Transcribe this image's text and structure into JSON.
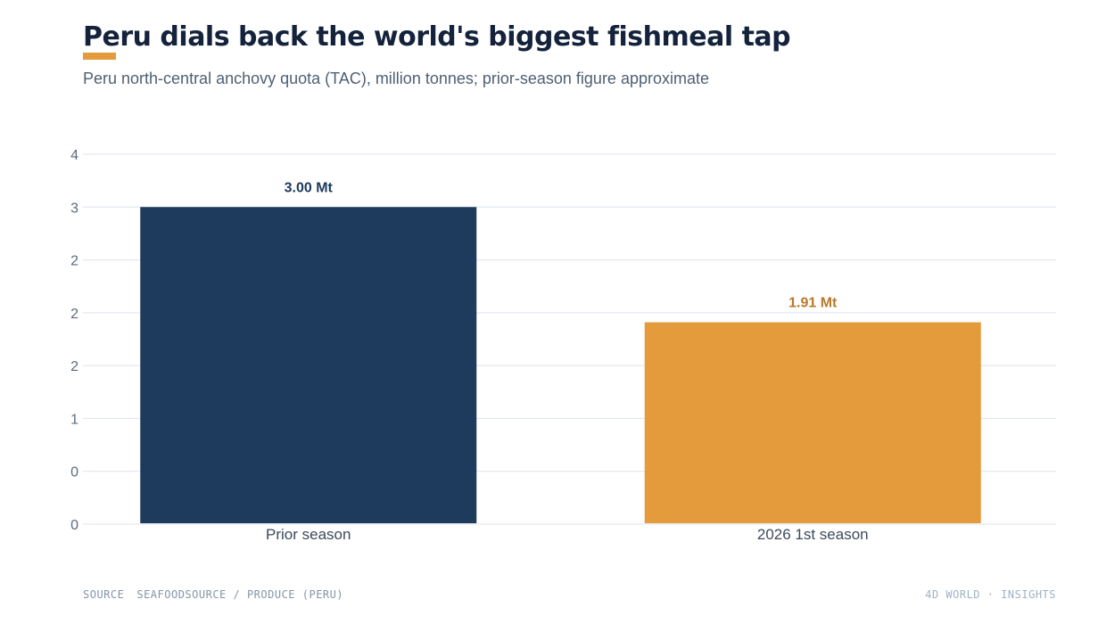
{
  "header": {
    "title": "Peru dials back the world's biggest fishmeal tap",
    "subtitle": "Peru north-central anchovy quota (TAC), million tonnes; prior-season figure approximate"
  },
  "colors": {
    "accent": "#e39b3b",
    "primary_bar": "#1e3a5c",
    "secondary_bar": "#e39b3b",
    "title": "#14233b",
    "grid": "#dde3ec"
  },
  "chart_data": {
    "type": "bar",
    "title": "Peru dials back the world's biggest fishmeal tap",
    "subtitle": "Peru north-central anchovy quota (TAC), million tonnes; prior-season figure approximate",
    "categories": [
      "Prior season",
      "2026 1st season"
    ],
    "values": [
      3.0,
      1.91
    ],
    "data_labels": [
      "3.00 Mt",
      "1.91 Mt"
    ],
    "bar_colors": [
      "#1e3a5c",
      "#e39b3b"
    ],
    "label_colors": [
      "#1e3a5c",
      "#b8792a"
    ],
    "ylim": [
      0,
      3.5
    ],
    "yticks": [
      0,
      0.5,
      1,
      1.5,
      2,
      2.5,
      3,
      3.5
    ],
    "ytick_labels": [
      "0",
      "0",
      "1",
      "2",
      "2",
      "2",
      "3",
      "4"
    ],
    "xlabel": "",
    "ylabel": "",
    "grid": true,
    "legend": "none"
  },
  "footer": {
    "source_label": "SOURCE",
    "source_text": "SEAFOODSOURCE / PRODUCE (PERU)",
    "brand": "4D WORLD · INSIGHTS"
  }
}
